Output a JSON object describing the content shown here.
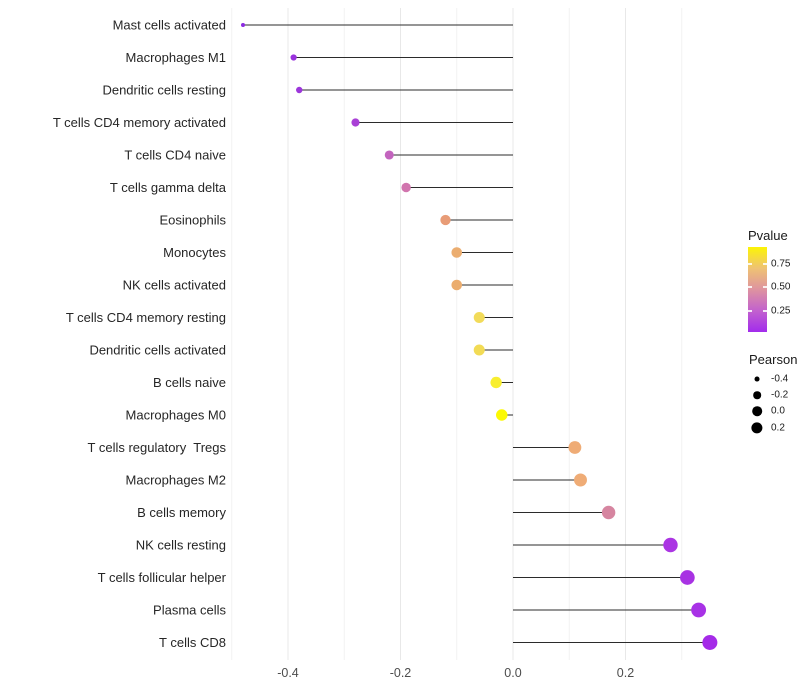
{
  "chart_data": {
    "type": "scatter",
    "subtype": "lollipop",
    "orientation": "horizontal",
    "title": "",
    "xlabel": "",
    "ylabel": "",
    "grid": true,
    "baseline": 0.0,
    "xlim": [
      -0.5,
      0.39
    ],
    "x_ticks": [
      "-0.4",
      "-0.2",
      "0.0",
      "0.2"
    ],
    "x_tick_values": [
      -0.4,
      -0.2,
      0.0,
      0.2
    ],
    "points": [
      {
        "label": "Mast cells activated",
        "pearson": -0.48,
        "color": "#8B2BE0"
      },
      {
        "label": "Macrophages M1",
        "pearson": -0.39,
        "color": "#9A33DD"
      },
      {
        "label": "Dendritic cells resting",
        "pearson": -0.38,
        "color": "#9C36DB"
      },
      {
        "label": "T cells CD4 memory activated",
        "pearson": -0.28,
        "color": "#A940D6"
      },
      {
        "label": "T cells CD4 naive",
        "pearson": -0.22,
        "color": "#C364BE"
      },
      {
        "label": "T cells gamma delta",
        "pearson": -0.19,
        "color": "#D175AE"
      },
      {
        "label": "Eosinophils",
        "pearson": -0.12,
        "color": "#E89C77"
      },
      {
        "label": "Monocytes",
        "pearson": -0.1,
        "color": "#EBAD70"
      },
      {
        "label": "NK cells activated",
        "pearson": -0.1,
        "color": "#EBAD6E"
      },
      {
        "label": "T cells CD4 memory resting",
        "pearson": -0.06,
        "color": "#F2DB5A"
      },
      {
        "label": "Dendritic cells activated",
        "pearson": -0.06,
        "color": "#F2DB55"
      },
      {
        "label": "B cells naive",
        "pearson": -0.03,
        "color": "#F8EE30"
      },
      {
        "label": "Macrophages M0",
        "pearson": -0.02,
        "color": "#FCF903"
      },
      {
        "label": "T cells regulatory  Tregs",
        "pearson": 0.11,
        "color": "#EFAC76"
      },
      {
        "label": "Macrophages M2",
        "pearson": 0.12,
        "color": "#EFAC76"
      },
      {
        "label": "B cells memory",
        "pearson": 0.17,
        "color": "#D685A0"
      },
      {
        "label": "NK cells resting",
        "pearson": 0.28,
        "color": "#AB35E3"
      },
      {
        "label": "T cells follicular helper",
        "pearson": 0.31,
        "color": "#A832E3"
      },
      {
        "label": "Plasma cells",
        "pearson": 0.33,
        "color": "#A832E6"
      },
      {
        "label": "T cells CD8",
        "pearson": 0.35,
        "color": "#A52BE8"
      }
    ],
    "legend_position": "right",
    "legends": {
      "pvalue": {
        "title": "Pvalue",
        "tick_labels": [
          "0.75",
          "0.50",
          "0.25"
        ],
        "tick_values": [
          0.75,
          0.5,
          0.25
        ],
        "range": [
          0,
          1
        ],
        "gradient_top_to_bottom": [
          "#FCF405",
          "#EFC273",
          "#DE93A0",
          "#C261CE",
          "#A22CEC"
        ]
      },
      "pearson": {
        "title": "Pearson",
        "tick_labels": [
          "-0.4",
          "-0.2",
          "0.0",
          "0.2"
        ],
        "tick_values": [
          -0.4,
          -0.2,
          0.0,
          0.2
        ],
        "dot_color": "#000000"
      }
    }
  }
}
